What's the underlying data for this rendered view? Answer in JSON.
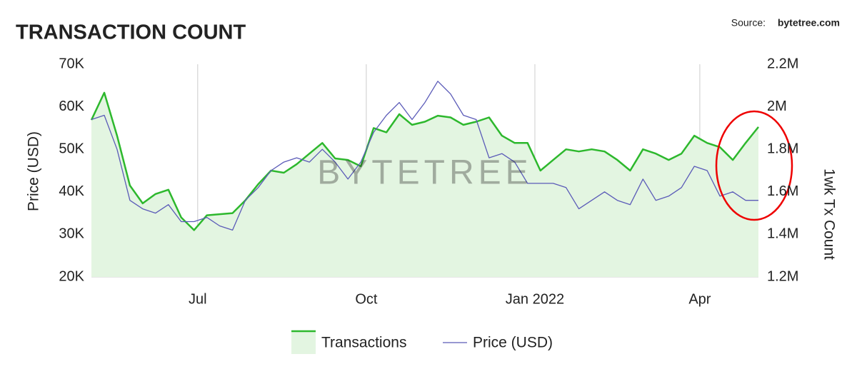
{
  "chart_data": {
    "type": "line",
    "title": "TRANSACTION COUNT",
    "source_label": "Source:",
    "source": "bytetree.com",
    "watermark": "BYTETREE",
    "ylabel": "Price (USD)",
    "y2label": "1wk Tx Count",
    "x": [
      "2021-05-04",
      "2021-05-11",
      "2021-05-18",
      "2021-05-25",
      "2021-06-01",
      "2021-06-08",
      "2021-06-15",
      "2021-06-22",
      "2021-06-29",
      "2021-07-06",
      "2021-07-13",
      "2021-07-20",
      "2021-07-27",
      "2021-08-03",
      "2021-08-10",
      "2021-08-17",
      "2021-08-24",
      "2021-08-31",
      "2021-09-07",
      "2021-09-14",
      "2021-09-21",
      "2021-09-28",
      "2021-10-05",
      "2021-10-12",
      "2021-10-19",
      "2021-10-26",
      "2021-11-02",
      "2021-11-09",
      "2021-11-16",
      "2021-11-23",
      "2021-11-30",
      "2021-12-07",
      "2021-12-14",
      "2021-12-21",
      "2021-12-28",
      "2022-01-04",
      "2022-01-11",
      "2022-01-18",
      "2022-01-25",
      "2022-02-01",
      "2022-02-08",
      "2022-02-15",
      "2022-02-22",
      "2022-03-01",
      "2022-03-08",
      "2022-03-15",
      "2022-03-22",
      "2022-03-29",
      "2022-04-05",
      "2022-04-12",
      "2022-04-19",
      "2022-04-26",
      "2022-05-03"
    ],
    "xlim": [
      "2021-05-04",
      "2022-05-03"
    ],
    "xticks": [
      {
        "value": "2021-07-01",
        "label": "Jul"
      },
      {
        "value": "2021-10-01",
        "label": "Oct"
      },
      {
        "value": "2022-01-01",
        "label": "Jan 2022"
      },
      {
        "value": "2022-04-01",
        "label": "Apr"
      }
    ],
    "ylim": [
      20000,
      70000
    ],
    "yticks": [
      {
        "value": 20000,
        "label": "20K"
      },
      {
        "value": 30000,
        "label": "30K"
      },
      {
        "value": 40000,
        "label": "40K"
      },
      {
        "value": 50000,
        "label": "50K"
      },
      {
        "value": 60000,
        "label": "60K"
      },
      {
        "value": 70000,
        "label": "70K"
      }
    ],
    "y2lim": [
      1200000,
      2200000
    ],
    "y2ticks": [
      {
        "value": 1200000,
        "label": "1.2M"
      },
      {
        "value": 1400000,
        "label": "1.4M"
      },
      {
        "value": 1600000,
        "label": "1.6M"
      },
      {
        "value": 1800000,
        "label": "1.8M"
      },
      {
        "value": 2000000,
        "label": "2M"
      },
      {
        "value": 2200000,
        "label": "2.2M"
      }
    ],
    "grid": "x",
    "series": [
      {
        "name": "Transactions",
        "color": "#2db82d",
        "fill": "#e3f5e1",
        "axis": "y2",
        "values": [
          1938000,
          2066000,
          1864000,
          1630000,
          1546000,
          1590000,
          1610000,
          1480000,
          1420000,
          1490000,
          1495000,
          1500000,
          1560000,
          1636000,
          1700000,
          1690000,
          1730000,
          1780000,
          1830000,
          1757000,
          1750000,
          1720000,
          1900000,
          1880000,
          1965000,
          1915000,
          1930000,
          1958000,
          1950000,
          1915000,
          1930000,
          1950000,
          1864000,
          1830000,
          1830000,
          1700000,
          1750000,
          1800000,
          1790000,
          1800000,
          1790000,
          1750000,
          1700000,
          1800000,
          1780000,
          1750000,
          1780000,
          1864000,
          1830000,
          1810000,
          1750000,
          1830000,
          1905000
        ]
      },
      {
        "name": "Price (USD)",
        "color": "#5b5bb8",
        "values": [
          57000,
          58000,
          50000,
          38000,
          36000,
          35000,
          37000,
          33000,
          33000,
          34000,
          32000,
          31000,
          38000,
          41000,
          45000,
          47000,
          48000,
          47000,
          50000,
          47000,
          43000,
          47000,
          54000,
          58000,
          61000,
          57000,
          61000,
          66000,
          63000,
          58000,
          57000,
          48000,
          49000,
          47000,
          42000,
          42000,
          42000,
          41000,
          36000,
          38000,
          40000,
          38000,
          37000,
          43000,
          38000,
          39000,
          41000,
          46000,
          45000,
          39000,
          40000,
          38000,
          38000
        ]
      }
    ]
  }
}
